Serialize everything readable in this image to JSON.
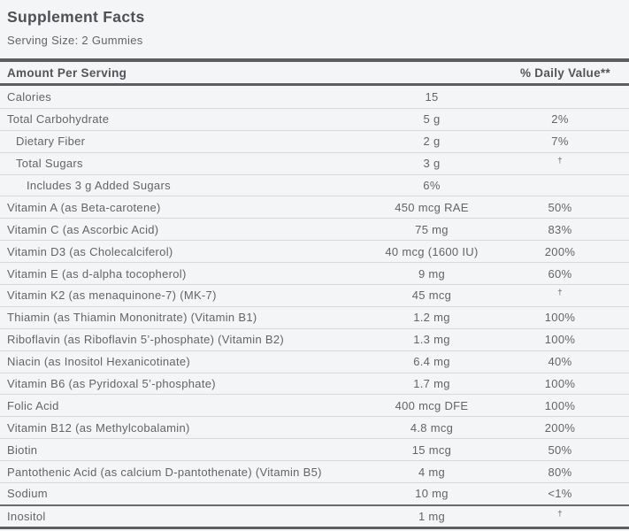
{
  "title": "Supplement Facts",
  "serving_size": "Serving Size: 2 Gummies",
  "table": {
    "header": {
      "amount_label": "Amount Per Serving",
      "daily_value_label": "% Daily Value**"
    },
    "rows": [
      {
        "name": "Calories",
        "amount": "15",
        "dv": "",
        "indent": 0
      },
      {
        "name": "Total Carbohydrate",
        "amount": "5 g",
        "dv": "2%",
        "indent": 0
      },
      {
        "name": "Dietary Fiber",
        "amount": "2 g",
        "dv": "7%",
        "indent": 1
      },
      {
        "name": "Total Sugars",
        "amount": "3 g",
        "dv": "†",
        "indent": 1
      },
      {
        "name": "Includes 3 g Added Sugars",
        "amount": "6%",
        "dv": "",
        "indent": 2
      },
      {
        "name": "Vitamin A (as Beta-carotene)",
        "amount": "450 mcg RAE",
        "dv": "50%",
        "indent": 0
      },
      {
        "name": "Vitamin C (as Ascorbic Acid)",
        "amount": "75 mg",
        "dv": "83%",
        "indent": 0
      },
      {
        "name": "Vitamin D3 (as Cholecalciferol)",
        "amount": "40 mcg (1600 IU)",
        "dv": "200%",
        "indent": 0
      },
      {
        "name": "Vitamin E (as d-alpha tocopherol)",
        "amount": "9 mg",
        "dv": "60%",
        "indent": 0
      },
      {
        "name": "Vitamin K2 (as menaquinone-7) (MK-7)",
        "amount": "45 mcg",
        "dv": "†",
        "indent": 0
      },
      {
        "name": "Thiamin (as Thiamin Mononitrate) (Vitamin B1)",
        "amount": "1.2 mg",
        "dv": "100%",
        "indent": 0
      },
      {
        "name": "Riboflavin (as Riboflavin 5’-phosphate) (Vitamin B2)",
        "amount": "1.3 mg",
        "dv": "100%",
        "indent": 0
      },
      {
        "name": "Niacin (as Inositol Hexanicotinate)",
        "amount": "6.4 mg",
        "dv": "40%",
        "indent": 0
      },
      {
        "name": "Vitamin B6 (as Pyridoxal 5’-phosphate)",
        "amount": "1.7 mg",
        "dv": "100%",
        "indent": 0
      },
      {
        "name": "Folic Acid",
        "amount": "400 mcg DFE",
        "dv": "100%",
        "indent": 0
      },
      {
        "name": "Vitamin B12 (as Methylcobalamin)",
        "amount": "4.8 mcg",
        "dv": "200%",
        "indent": 0
      },
      {
        "name": "Biotin",
        "amount": "15 mcg",
        "dv": "50%",
        "indent": 0
      },
      {
        "name": "Pantothenic Acid (as calcium D-pantothenate) (Vitamin B5)",
        "amount": "4 mg",
        "dv": "80%",
        "indent": 0
      },
      {
        "name": "Sodium",
        "amount": "10 mg",
        "dv": "<1%",
        "indent": 0
      },
      {
        "name": "Inositol",
        "amount": "1 mg",
        "dv": "†",
        "indent": 0,
        "section_break": true
      }
    ]
  },
  "colors": {
    "background": "#f4f5f6",
    "heavy_rule": "#5d5e60",
    "thin_rule": "#d8d9db",
    "title_text": "#4f5054",
    "body_text": "#636468"
  }
}
